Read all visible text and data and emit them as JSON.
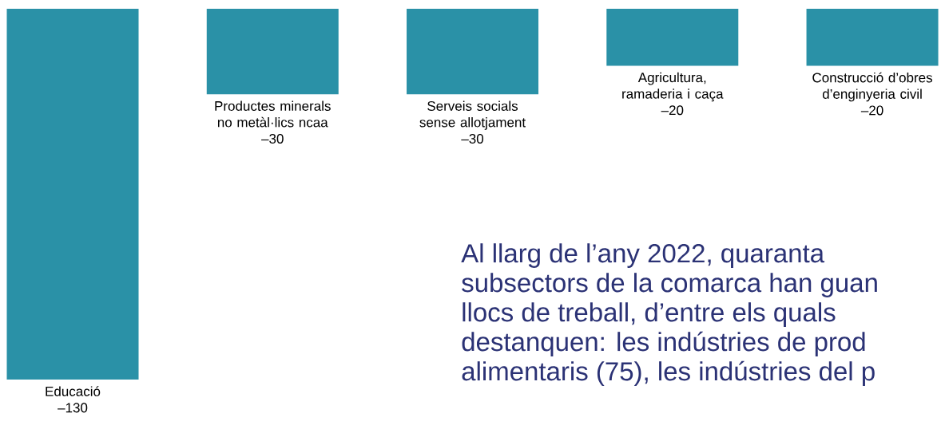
{
  "chart_data": {
    "type": "bar",
    "categories": [
      "Educació",
      "Productes minerals no metàl·lics ncaa",
      "Serveis socials sense allotjament",
      "Agricultura, ramaderia i caça",
      "Construcció d’obres d’enginyeria civil"
    ],
    "values": [
      -130,
      -30,
      -30,
      -20,
      -20
    ],
    "value_labels": [
      "–130",
      "–30",
      "–30",
      "–20",
      "–20"
    ],
    "color": "#2a91a7",
    "annotations": [
      "Al llarg de l’any 2022, quaranta",
      "subsectors de la comarca han guan",
      "llocs de treball, d’entre els quals",
      "destanquen: les indústries de prod",
      "alimentaris (75), les indústries del p"
    ]
  }
}
